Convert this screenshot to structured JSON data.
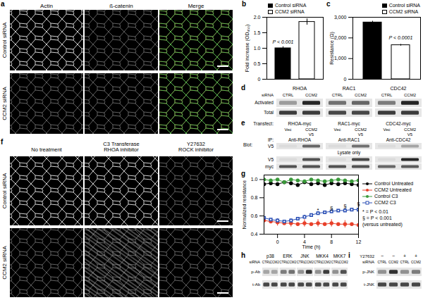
{
  "images": {
    "a": {
      "letter": "a",
      "columns": [
        "Actin",
        "ß-catenin",
        "Merge"
      ],
      "rows": [
        "Control siRNA",
        "CCM2 siRNA"
      ]
    },
    "f": {
      "letter": "f",
      "columns": [
        "No treatment",
        "C3 Transferase\nRHOA inhibitor",
        "Y27632\nROCK inhibitor"
      ],
      "rows": [
        "Control siRNA",
        "CCM2 siRNA"
      ]
    }
  },
  "chart_data": [
    {
      "panel_label": "b",
      "type": "bar",
      "categories": [
        "Control siRNA",
        "CCM2 siRNA"
      ],
      "values": [
        1.0,
        1.85
      ],
      "errors": [
        0.05,
        0.1
      ],
      "colors": [
        "#000000",
        "#ffffff"
      ],
      "ylabel": "Fold increase (OD₄₅₀)",
      "ylim": [
        0,
        2
      ],
      "yticks": [
        0,
        0.5,
        {
          "value": 1,
          "label": "1.0"
        },
        1.5,
        {
          "value": 2,
          "label": "2.0"
        }
      ],
      "annotations": [
        {
          "text": "P < 0.001",
          "x": "Control siRNA",
          "y": 1.2
        }
      ],
      "legend": "top-left",
      "tick_labels": "y"
    },
    {
      "panel_label": "c",
      "type": "bar",
      "categories": [
        "Control siRNA",
        "CCM2 siRNA"
      ],
      "values": [
        2750,
        1650
      ],
      "errors": [
        60,
        40
      ],
      "colors": [
        "#000000",
        "#ffffff"
      ],
      "ylabel": "Resistance (Ω)",
      "ylim": [
        0,
        3000
      ],
      "yticks": [
        0,
        {
          "value": 1000,
          "label": "1,000"
        },
        {
          "value": 2000,
          "label": "2,000"
        },
        {
          "value": 3000,
          "label": "3,000"
        }
      ],
      "annotations": [
        {
          "text": "P < 0.0001",
          "x": "CCM2 siRNA",
          "y": 2000
        }
      ],
      "legend": "top-right",
      "tick_labels": "y"
    },
    {
      "panel_label": "g",
      "type": "line",
      "xlabel": "Time (h)",
      "ylabel": "Normalized resistance",
      "x": [
        -2,
        -1,
        0,
        1,
        2,
        3,
        4,
        5,
        6,
        7,
        8,
        9,
        10,
        11,
        12
      ],
      "xlim": [
        -2,
        12
      ],
      "xticks": [
        0,
        4,
        8,
        12
      ],
      "ylim": [
        0.4,
        1.05
      ],
      "yticks": [
        0.4,
        0.6,
        0.8,
        {
          "value": 1,
          "label": "1.0"
        }
      ],
      "series": [
        {
          "name": "Control Untreated",
          "color": "#000000",
          "marker": "circle",
          "values": [
            0.95,
            0.96,
            0.95,
            0.97,
            0.96,
            0.94,
            0.97,
            0.95,
            0.96,
            0.94,
            0.96,
            0.95,
            0.96,
            0.95,
            0.94
          ]
        },
        {
          "name": "CCM2 Untreated",
          "color": "#e8402a",
          "marker": "circle",
          "values": [
            0.55,
            0.54,
            0.53,
            0.52,
            0.52,
            0.51,
            0.52,
            0.51,
            0.52,
            0.51,
            0.52,
            0.51,
            0.51,
            0.51,
            0.5
          ],
          "errors": [
            0.04,
            null,
            0.04,
            null,
            0.04,
            null,
            0.04,
            null,
            0.04,
            null,
            0.04,
            null,
            0.04,
            null,
            0.04
          ]
        },
        {
          "name": "Control C3",
          "color": "#3a9a3a",
          "marker": "circle",
          "values": [
            1.0,
            0.99,
            1.0,
            0.97,
            1.0,
            0.99,
            0.98,
            1.0,
            0.99,
            0.98,
            0.99,
            1.0,
            0.99,
            0.98,
            0.99
          ]
        },
        {
          "name": "CCM2 C3",
          "color": "#2a4fb5",
          "marker": "square",
          "values": [
            0.58,
            0.56,
            0.55,
            0.54,
            0.55,
            0.57,
            0.59,
            0.61,
            0.63,
            0.64,
            0.65,
            0.66,
            0.66,
            0.67,
            0.67
          ],
          "errors": [
            0.03,
            null,
            0.02,
            null,
            0.02,
            null,
            0.02,
            null,
            0.02,
            null,
            0.02,
            null,
            0.02,
            null,
            0.02
          ]
        }
      ],
      "annotations": [
        {
          "text": "*",
          "x": 6,
          "y": 0.66
        },
        {
          "text": "§",
          "x": 8,
          "y": 0.69
        },
        {
          "text": "§",
          "x": 10,
          "y": 0.71
        },
        {
          "text": "§",
          "x": 12,
          "y": 0.73
        }
      ],
      "notes": [
        "* = P < 0.01",
        "§ = P < 0.001",
        "(versus untreated)"
      ],
      "legend": "right"
    }
  ],
  "blots": {
    "d": {
      "letter": "d",
      "groups": [
        "RHOA",
        "RAC1",
        "CDC42"
      ],
      "row_header": "siRNA",
      "lanes": [
        "CTRL",
        "CCM2"
      ],
      "rows": [
        {
          "label": "Activated",
          "band_intensity": [
            [
              0.35,
              0.9
            ],
            [
              0.55,
              0.6
            ],
            [
              0.5,
              0.9
            ]
          ]
        },
        {
          "label": "Total",
          "band_intensity": [
            [
              0.8,
              0.8
            ],
            [
              0.75,
              0.75
            ],
            [
              0.8,
              0.8
            ]
          ]
        }
      ]
    },
    "e": {
      "letter": "e",
      "transfect_label": "Transfect:",
      "groups": [
        "RHOA-myc",
        "RAC1-myc",
        "CDC42-myc"
      ],
      "lanes": [
        "Vec",
        "CCM2\nV5"
      ],
      "ip_label": "IP:",
      "ip": [
        "Anti-RHOA",
        "Anti-RAC1",
        "Anti-CDC42"
      ],
      "blot_label": "Blot:",
      "note": "Lysate only",
      "rows": [
        {
          "label": "V5",
          "band_intensity": [
            [
              0.05,
              0.6
            ],
            [
              0.05,
              0.55
            ],
            [
              0.05,
              0.3
            ]
          ]
        },
        {
          "label": "V5",
          "band_intensity": [
            [
              0.05,
              0.7
            ],
            [
              0.05,
              0.75
            ],
            [
              0.05,
              0.9
            ]
          ]
        },
        {
          "label": "myc",
          "band_intensity": [
            [
              0.7,
              0.7
            ],
            [
              0.7,
              0.7
            ],
            [
              0.6,
              0.65
            ]
          ]
        }
      ]
    },
    "h": {
      "letter": "h",
      "groups": [
        "p38",
        "ERK",
        "JNK",
        "MKK4",
        "MKK7"
      ],
      "row_header": "siRNA",
      "lanes": [
        "CTRL",
        "CCM2"
      ],
      "rows": [
        {
          "label": "p-Ab",
          "band_intensity": [
            [
              0.3,
              0.3
            ],
            [
              0.5,
              0.55
            ],
            [
              0.4,
              0.85
            ],
            [
              0.4,
              0.8
            ],
            [
              0.4,
              0.7
            ]
          ]
        },
        {
          "label": "t-Ab",
          "band_intensity": [
            [
              0.75,
              0.75
            ],
            [
              0.75,
              0.75
            ],
            [
              0.75,
              0.75
            ],
            [
              0.75,
              0.75
            ],
            [
              0.75,
              0.75
            ]
          ]
        }
      ]
    },
    "i": {
      "letter": "i",
      "treatment_header": "Y27632",
      "treatment": [
        "−",
        "−",
        "+",
        "+"
      ],
      "row_header": "siRNA",
      "lanes": [
        "CTRL",
        "CCM2",
        "CTRL",
        "CCM2"
      ],
      "rows": [
        {
          "label": "p-JNK",
          "band_intensity": [
            0.4,
            0.85,
            0.4,
            0.5
          ]
        },
        {
          "label": "t-JNK",
          "band_intensity": [
            0.75,
            0.75,
            0.75,
            0.75
          ]
        }
      ]
    }
  }
}
